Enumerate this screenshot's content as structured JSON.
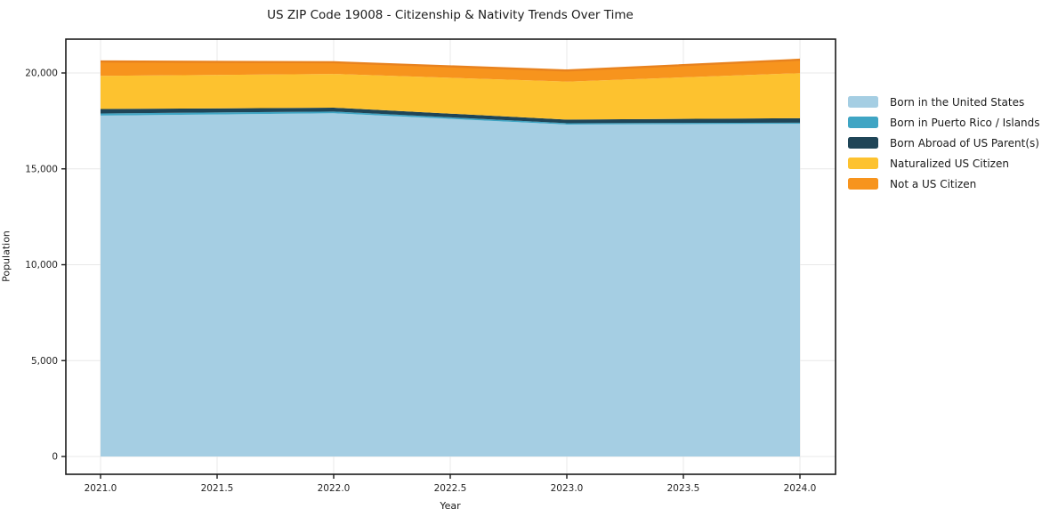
{
  "title": "US ZIP Code 19008 - Citizenship & Nativity Trends Over Time",
  "xlabel": "Year",
  "ylabel": "Population",
  "chart_data": {
    "type": "area",
    "stacked": true,
    "title": "US ZIP Code 19008 - Citizenship & Nativity Trends Over Time",
    "xlabel": "Year",
    "ylabel": "Population",
    "grid": true,
    "legend_position": "right-outside",
    "x": [
      2021,
      2022,
      2023,
      2024
    ],
    "xticks": [
      2021.0,
      2021.5,
      2022.0,
      2022.5,
      2023.0,
      2023.5,
      2024.0
    ],
    "xtick_labels": [
      "2021.0",
      "2021.5",
      "2022.0",
      "2022.5",
      "2023.0",
      "2023.5",
      "2024.0"
    ],
    "yticks": [
      0,
      5000,
      10000,
      15000,
      20000
    ],
    "ytick_labels": [
      "0",
      "5,000",
      "10,000",
      "15,000",
      "20,000"
    ],
    "xlim": [
      2020.85,
      2024.16
    ],
    "ylim": [
      -950,
      21800
    ],
    "series": [
      {
        "name": "Born in the United States",
        "color": "#a5cee3",
        "values": [
          17780,
          17900,
          17310,
          17350
        ]
      },
      {
        "name": "Born in Puerto Rico / Islands",
        "color": "#3fa5c4",
        "values": [
          110,
          90,
          70,
          60
        ]
      },
      {
        "name": "Born Abroad of US Parent(s)",
        "color": "#1f4557",
        "values": [
          230,
          200,
          190,
          230
        ]
      },
      {
        "name": "Naturalized US Citizen",
        "color": "#fdc22f",
        "values": [
          1730,
          1760,
          1980,
          2350
        ]
      },
      {
        "name": "Not a US Citizen",
        "color": "#f7941d",
        "values": [
          750,
          610,
          580,
          700
        ]
      }
    ],
    "stack_totals": [
      20600,
      20560,
      20130,
      20690
    ],
    "total_edge_color": "#e8821e",
    "grid_color": "#e8e8e8",
    "axis_color": "#1a1a1a"
  }
}
